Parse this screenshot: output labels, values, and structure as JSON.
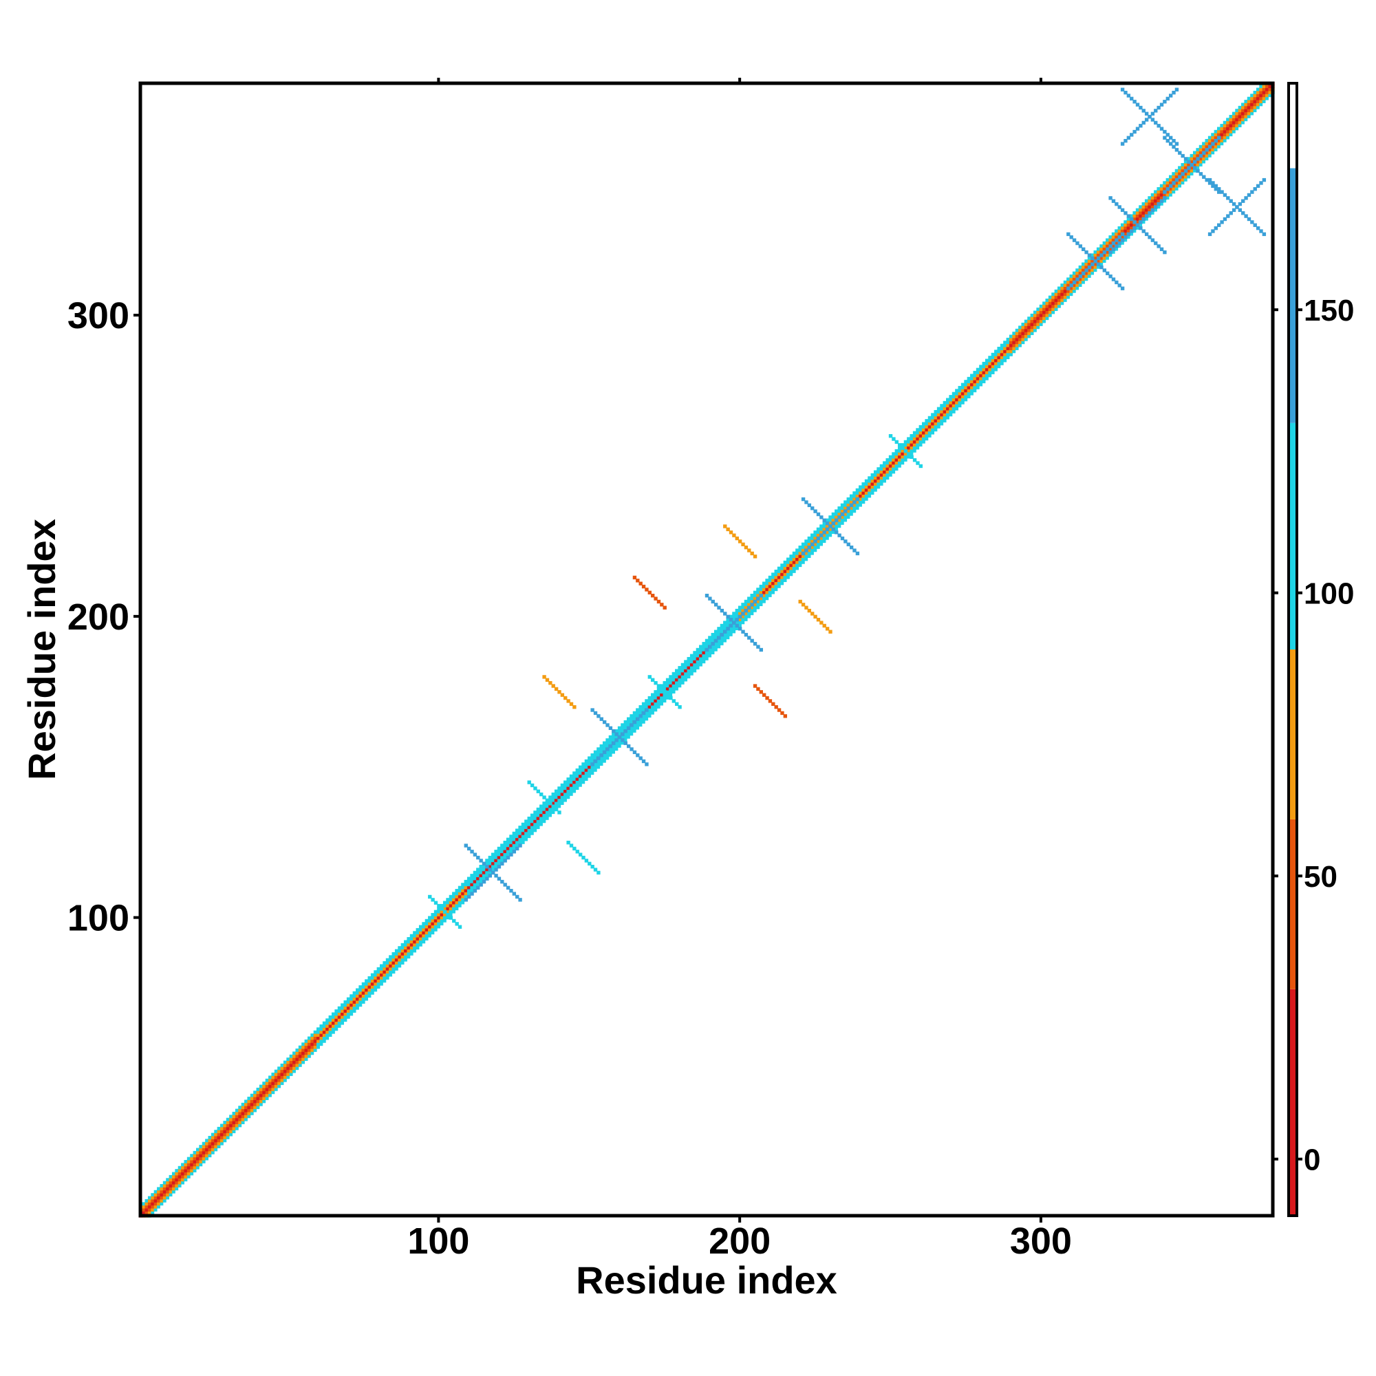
{
  "chart_data": {
    "type": "heatmap",
    "title": "",
    "xlabel": "Residue index",
    "ylabel": "Residue index",
    "xlim": [
      1,
      377
    ],
    "ylim": [
      1,
      377
    ],
    "x_ticks": [
      100,
      200,
      300
    ],
    "y_ticks": [
      100,
      200,
      300
    ],
    "grid": false,
    "colorbar": {
      "range": [
        -10,
        190
      ],
      "ticks": [
        0,
        50,
        100,
        150
      ],
      "bins": [
        {
          "from": -10,
          "to": 30,
          "color": "#d7191c"
        },
        {
          "from": 30,
          "to": 60,
          "color": "#e6550d"
        },
        {
          "from": 60,
          "to": 90,
          "color": "#f39c12"
        },
        {
          "from": 90,
          "to": 130,
          "color": "#1ed4e6"
        },
        {
          "from": 130,
          "to": 175,
          "color": "#3aa0d8"
        },
        {
          "from": 175,
          "to": 190,
          "color": "#ffffff"
        }
      ]
    },
    "diagonal": [
      {
        "from": 1,
        "to": 60,
        "value": 40
      },
      {
        "from": 60,
        "to": 110,
        "value": 70
      },
      {
        "from": 110,
        "to": 200,
        "value": 75
      },
      {
        "from": 200,
        "to": 290,
        "value": 65
      },
      {
        "from": 290,
        "to": 377,
        "value": 40
      }
    ],
    "off_diagonal_blobs": [
      {
        "x": 118,
        "y": 115,
        "value": 140
      },
      {
        "x": 160,
        "y": 160,
        "value": 140
      },
      {
        "x": 198,
        "y": 198,
        "value": 140
      },
      {
        "x": 230,
        "y": 230,
        "value": 140
      },
      {
        "x": 318,
        "y": 318,
        "value": 140
      },
      {
        "x": 332,
        "y": 330,
        "value": 140
      },
      {
        "x": 350,
        "y": 350,
        "value": 140
      },
      {
        "x": 336,
        "y": 366,
        "value": 140
      },
      {
        "x": 365,
        "y": 336,
        "value": 140
      },
      {
        "x": 170,
        "y": 208,
        "value": 45
      },
      {
        "x": 210,
        "y": 172,
        "value": 45
      },
      {
        "x": 175,
        "y": 175,
        "value": 95
      },
      {
        "x": 255,
        "y": 255,
        "value": 95
      },
      {
        "x": 135,
        "y": 140,
        "value": 95
      },
      {
        "x": 102,
        "y": 102,
        "value": 95
      },
      {
        "x": 148,
        "y": 120,
        "value": 100
      },
      {
        "x": 140,
        "y": 175,
        "value": 75
      },
      {
        "x": 200,
        "y": 225,
        "value": 80
      },
      {
        "x": 225,
        "y": 200,
        "value": 80
      }
    ]
  }
}
